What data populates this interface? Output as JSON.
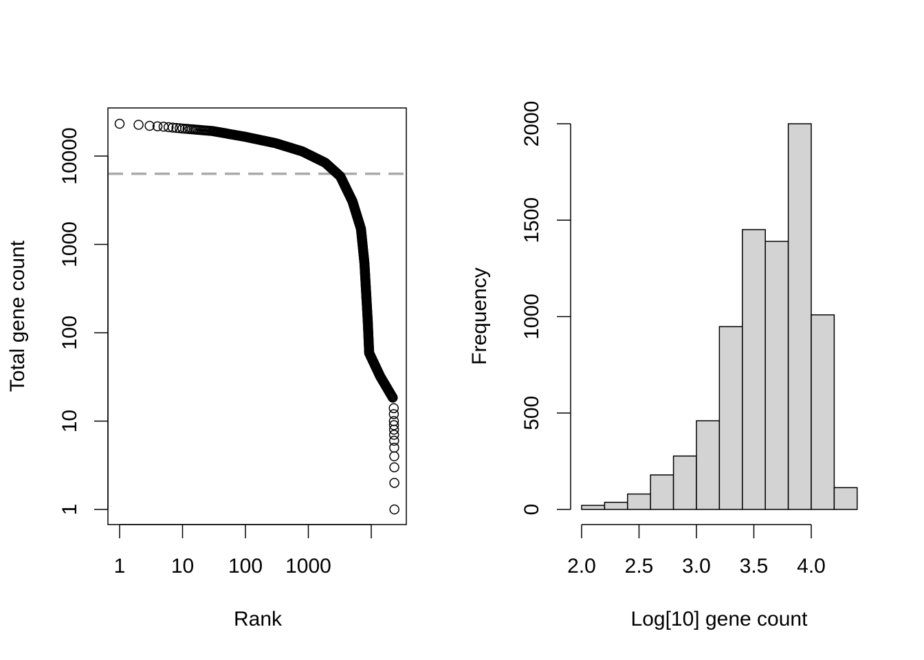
{
  "chart_data": [
    {
      "type": "scatter",
      "xlabel": "Rank",
      "ylabel": "Total gene count",
      "x_scale": "log",
      "y_scale": "log",
      "xlim": [
        0.83,
        30000
      ],
      "ylim": [
        0.7,
        35000
      ],
      "x_ticks": [
        1,
        10,
        100,
        1000,
        10000
      ],
      "x_tick_labels": [
        "1",
        "10",
        "100",
        "1000",
        ""
      ],
      "y_ticks": [
        1,
        10,
        100,
        1000,
        10000
      ],
      "y_tick_labels": [
        "1",
        "10",
        "100",
        "1000",
        "10000"
      ],
      "reference_line": {
        "y": 6300,
        "style": "dashed",
        "color": "#aaaaaa"
      },
      "curve": [
        {
          "rank": 1,
          "count": 23200
        },
        {
          "rank": 2,
          "count": 22600
        },
        {
          "rank": 3,
          "count": 22000
        },
        {
          "rank": 5,
          "count": 21500
        },
        {
          "rank": 10,
          "count": 20500
        },
        {
          "rank": 30,
          "count": 19200
        },
        {
          "rank": 100,
          "count": 16500
        },
        {
          "rank": 300,
          "count": 14000
        },
        {
          "rank": 800,
          "count": 11300
        },
        {
          "rank": 1860,
          "count": 8400
        },
        {
          "rank": 3220,
          "count": 5900
        },
        {
          "rank": 5040,
          "count": 3060
        },
        {
          "rank": 6860,
          "count": 1500
        },
        {
          "rank": 7800,
          "count": 610
        },
        {
          "rank": 8800,
          "count": 135
        },
        {
          "rank": 9270,
          "count": 59
        },
        {
          "rank": 13900,
          "count": 32
        },
        {
          "rank": 22400,
          "count": 18
        }
      ],
      "tail_points": [
        {
          "rank": 22800,
          "count": 14
        },
        {
          "rank": 22850,
          "count": 12
        },
        {
          "rank": 22900,
          "count": 10
        },
        {
          "rank": 22950,
          "count": 9
        },
        {
          "rank": 23000,
          "count": 8
        },
        {
          "rank": 23050,
          "count": 7
        },
        {
          "rank": 23100,
          "count": 6
        },
        {
          "rank": 23150,
          "count": 5
        },
        {
          "rank": 23200,
          "count": 4
        },
        {
          "rank": 23250,
          "count": 3
        },
        {
          "rank": 23300,
          "count": 2
        },
        {
          "rank": 23350,
          "count": 1
        }
      ],
      "marker": "open-circle",
      "grid": false
    },
    {
      "type": "bar",
      "subtype": "histogram",
      "xlabel": "Log[10] gene count",
      "ylabel": "Frequency",
      "bin_edges": [
        2.0,
        2.2,
        2.4,
        2.6,
        2.8,
        3.0,
        3.2,
        3.4,
        3.6,
        3.8,
        4.0,
        4.2,
        4.4
      ],
      "values": [
        21,
        37,
        80,
        179,
        277,
        460,
        948,
        1451,
        1390,
        2000,
        1009,
        113
      ],
      "x_ticks": [
        "2.0",
        "2.5",
        "3.0",
        "3.5",
        "4.0"
      ],
      "y_ticks": [
        "0",
        "500",
        "1000",
        "1500",
        "2000"
      ],
      "ylim": [
        0,
        2000
      ],
      "bar_color": "#d3d3d3",
      "grid": false
    }
  ]
}
